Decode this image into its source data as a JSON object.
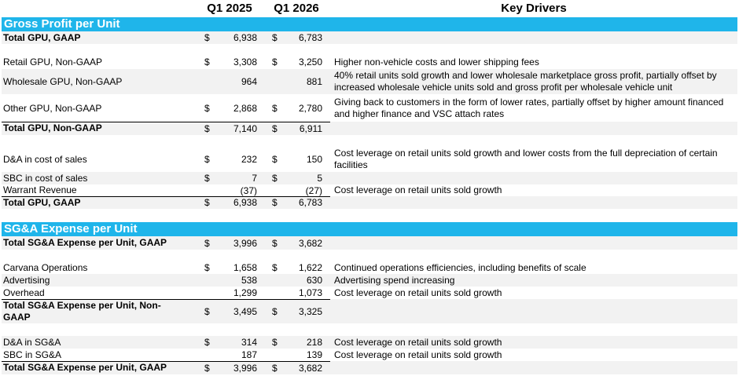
{
  "headers": {
    "q1_2025": "Q1 2025",
    "q1_2026": "Q1 2026",
    "key_drivers": "Key Drivers"
  },
  "section_gpu": {
    "title": "Gross Profit per Unit",
    "rows": [
      {
        "label": "Total GPU, GAAP",
        "cur1": "$",
        "v1": "6,938",
        "cur2": "$",
        "v2": "6,783",
        "driver": ""
      },
      {
        "label": "Retail GPU, Non-GAAP",
        "cur1": "$",
        "v1": "3,308",
        "cur2": "$",
        "v2": "3,250",
        "driver": "Higher non-vehicle costs and lower shipping fees"
      },
      {
        "label": "Wholesale GPU, Non-GAAP",
        "cur1": "",
        "v1": "964",
        "cur2": "",
        "v2": "881",
        "driver": "40% retail units sold growth and lower wholesale marketplace gross profit, partially offset by increased wholesale vehicle units sold and gross profit per wholesale vehicle unit"
      },
      {
        "label": "Other GPU, Non-GAAP",
        "cur1": "$",
        "v1": "2,868",
        "cur2": "$",
        "v2": "2,780",
        "driver": "Giving back to customers in the form of lower rates, partially offset by higher amount financed and higher finance and VSC attach rates"
      },
      {
        "label": "Total GPU, Non-GAAP",
        "cur1": "$",
        "v1": "7,140",
        "cur2": "$",
        "v2": "6,911",
        "driver": ""
      },
      {
        "label": "D&A in cost of sales",
        "cur1": "$",
        "v1": "232",
        "cur2": "$",
        "v2": "150",
        "driver": "Cost leverage on retail units sold growth and lower costs from the full depreciation of certain facilities"
      },
      {
        "label": "SBC in cost of sales",
        "cur1": "$",
        "v1": "7",
        "cur2": "$",
        "v2": "5",
        "driver": ""
      },
      {
        "label": "Warrant Revenue",
        "cur1": "",
        "v1": "(37)",
        "cur2": "",
        "v2": "(27)",
        "driver": "Cost leverage on retail units sold growth"
      },
      {
        "label": "Total GPU, GAAP",
        "cur1": "$",
        "v1": "6,938",
        "cur2": "$",
        "v2": "6,783",
        "driver": ""
      }
    ]
  },
  "section_sga": {
    "title": "SG&A Expense per Unit",
    "rows": [
      {
        "label": "Total SG&A Expense per Unit, GAAP",
        "cur1": "$",
        "v1": "3,996",
        "cur2": "$",
        "v2": "3,682",
        "driver": ""
      },
      {
        "label": "Carvana Operations",
        "cur1": "$",
        "v1": "1,658",
        "cur2": "$",
        "v2": "1,622",
        "driver": "Continued operations efficiencies, including benefits of scale"
      },
      {
        "label": "Advertising",
        "cur1": "",
        "v1": "538",
        "cur2": "",
        "v2": "630",
        "driver": "Advertising spend increasing"
      },
      {
        "label": "Overhead",
        "cur1": "",
        "v1": "1,299",
        "cur2": "",
        "v2": "1,073",
        "driver": "Cost leverage on retail units sold growth"
      },
      {
        "label": "Total SG&A Expense per Unit, Non-GAAP",
        "cur1": "$",
        "v1": "3,495",
        "cur2": "$",
        "v2": "3,325",
        "driver": ""
      },
      {
        "label": "D&A in SG&A",
        "cur1": "$",
        "v1": "314",
        "cur2": "$",
        "v2": "218",
        "driver": "Cost leverage on retail units sold growth"
      },
      {
        "label": "SBC in SG&A",
        "cur1": "",
        "v1": "187",
        "cur2": "",
        "v2": "139",
        "driver": "Cost leverage on retail units sold growth"
      },
      {
        "label": "Total SG&A Expense per Unit, GAAP",
        "cur1": "$",
        "v1": "3,996",
        "cur2": "$",
        "v2": "3,682",
        "driver": ""
      }
    ]
  }
}
